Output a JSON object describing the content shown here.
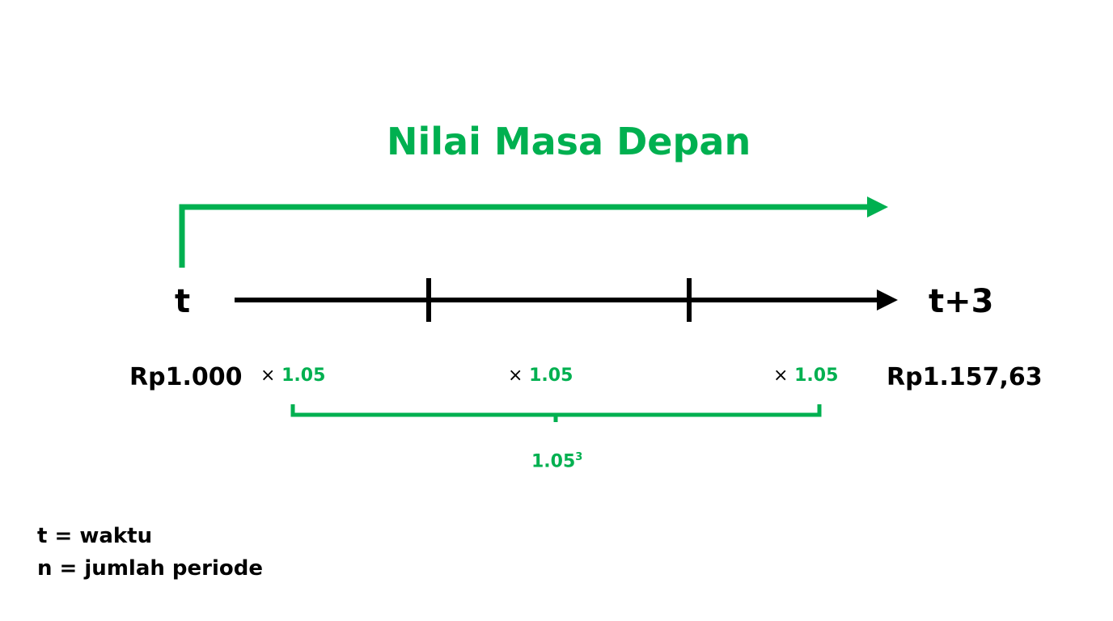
{
  "title": "Nilai Masa Depan",
  "start_label": "t",
  "end_label": "t+3",
  "present_value": "Rp1.000",
  "future_value": "Rp1.157,63",
  "multiply_symbol": "×",
  "factors": [
    "1.05",
    "1.05",
    "1.05"
  ],
  "combined_factor": {
    "base": "1.05",
    "exponent": "3"
  },
  "legend": [
    "t = waktu",
    "n = jumlah periode"
  ],
  "colors": {
    "accent": "#00b050",
    "line": "#000000"
  }
}
